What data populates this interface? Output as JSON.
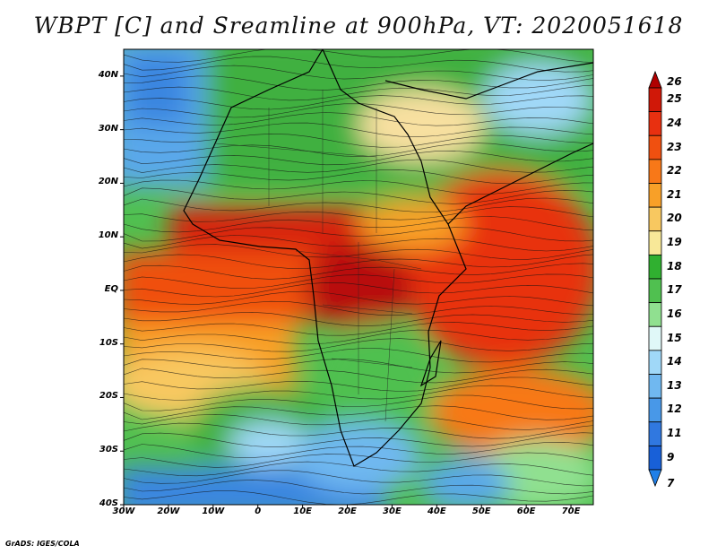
{
  "title": "WBPT [C] and Sreamline at 900hPa, VT: 2020051618",
  "credit": "GrADS: IGES/COLA",
  "map": {
    "lon_range": [
      -30,
      75
    ],
    "lat_range": [
      -40,
      45
    ],
    "lat_ticks": [
      {
        "value": 40,
        "label": "40N"
      },
      {
        "value": 30,
        "label": "30N"
      },
      {
        "value": 20,
        "label": "20N"
      },
      {
        "value": 10,
        "label": "10N"
      },
      {
        "value": 0,
        "label": "EQ"
      },
      {
        "value": -10,
        "label": "10S"
      },
      {
        "value": -20,
        "label": "20S"
      },
      {
        "value": -30,
        "label": "30S"
      },
      {
        "value": -40,
        "label": "40S"
      }
    ],
    "lon_ticks": [
      {
        "value": -30,
        "label": "30W"
      },
      {
        "value": -20,
        "label": "20W"
      },
      {
        "value": -10,
        "label": "10W"
      },
      {
        "value": 0,
        "label": "0"
      },
      {
        "value": 10,
        "label": "10E"
      },
      {
        "value": 20,
        "label": "20E"
      },
      {
        "value": 30,
        "label": "30E"
      },
      {
        "value": 40,
        "label": "40E"
      },
      {
        "value": 50,
        "label": "50E"
      },
      {
        "value": 60,
        "label": "60E"
      },
      {
        "value": 70,
        "label": "70E"
      }
    ]
  },
  "colorbar": {
    "levels": [
      "26",
      "25",
      "24",
      "23",
      "22",
      "21",
      "20",
      "19",
      "18",
      "17",
      "16",
      "15",
      "14",
      "13",
      "12",
      "11",
      "9",
      "7"
    ],
    "colors": [
      "#b00000",
      "#d01808",
      "#e83010",
      "#f05010",
      "#f87818",
      "#f8a028",
      "#f8c860",
      "#f8e898",
      "#30b030",
      "#50c050",
      "#90e090",
      "#e0f8f8",
      "#a0d8f8",
      "#70b8f0",
      "#4898e8",
      "#3078e0",
      "#1860d8",
      "#2080e8"
    ]
  }
}
